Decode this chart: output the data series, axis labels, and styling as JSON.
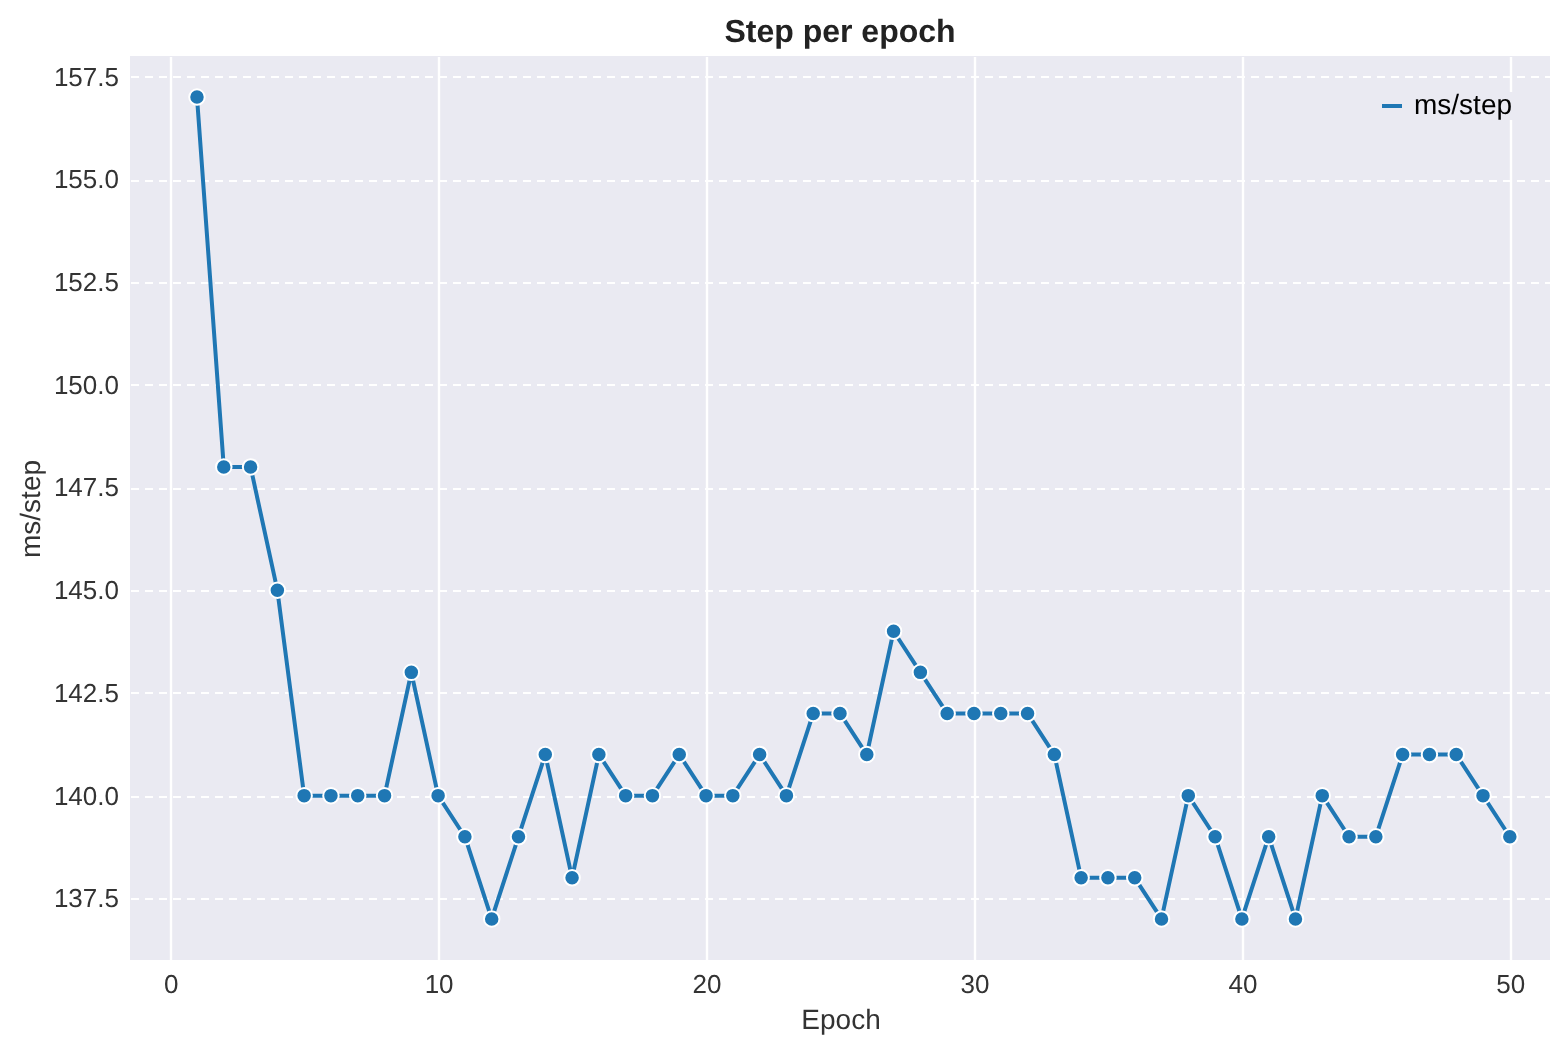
{
  "chart_data": {
    "type": "line",
    "title": "Step per epoch",
    "xlabel": "Epoch",
    "ylabel": "ms/step",
    "x": [
      1,
      2,
      3,
      4,
      5,
      6,
      7,
      8,
      9,
      10,
      11,
      12,
      13,
      14,
      15,
      16,
      17,
      18,
      19,
      20,
      21,
      22,
      23,
      24,
      25,
      26,
      27,
      28,
      29,
      30,
      31,
      32,
      33,
      34,
      35,
      36,
      37,
      38,
      39,
      40,
      41,
      42,
      43,
      44,
      45,
      46,
      47,
      48,
      49,
      50
    ],
    "series": [
      {
        "name": "ms/step",
        "color": "#1f77b4",
        "values": [
          157,
          148,
          148,
          145,
          140,
          140,
          140,
          140,
          143,
          140,
          139,
          137,
          139,
          141,
          138,
          141,
          140,
          140,
          141,
          140,
          140,
          141,
          140,
          142,
          142,
          141,
          144,
          143,
          142,
          142,
          142,
          142,
          141,
          138,
          138,
          138,
          137,
          140,
          139,
          137,
          139,
          137,
          140,
          139,
          139,
          141,
          141,
          141,
          140,
          139
        ]
      }
    ],
    "xlim": [
      -1.5,
      51.5
    ],
    "xticks": [
      0,
      10,
      20,
      30,
      40,
      50
    ],
    "ylim": [
      136,
      158
    ],
    "yticks": [
      137.5,
      {
        "value": 140,
        "label": "140.0"
      },
      142.5,
      {
        "value": 145,
        "label": "145.0"
      },
      147.5,
      {
        "value": 150,
        "label": "150.0"
      },
      152.5,
      {
        "value": 155,
        "label": "155.0"
      },
      157.5
    ],
    "grid": true,
    "legend": "top right",
    "marker": "circle",
    "line_style": "solid"
  }
}
